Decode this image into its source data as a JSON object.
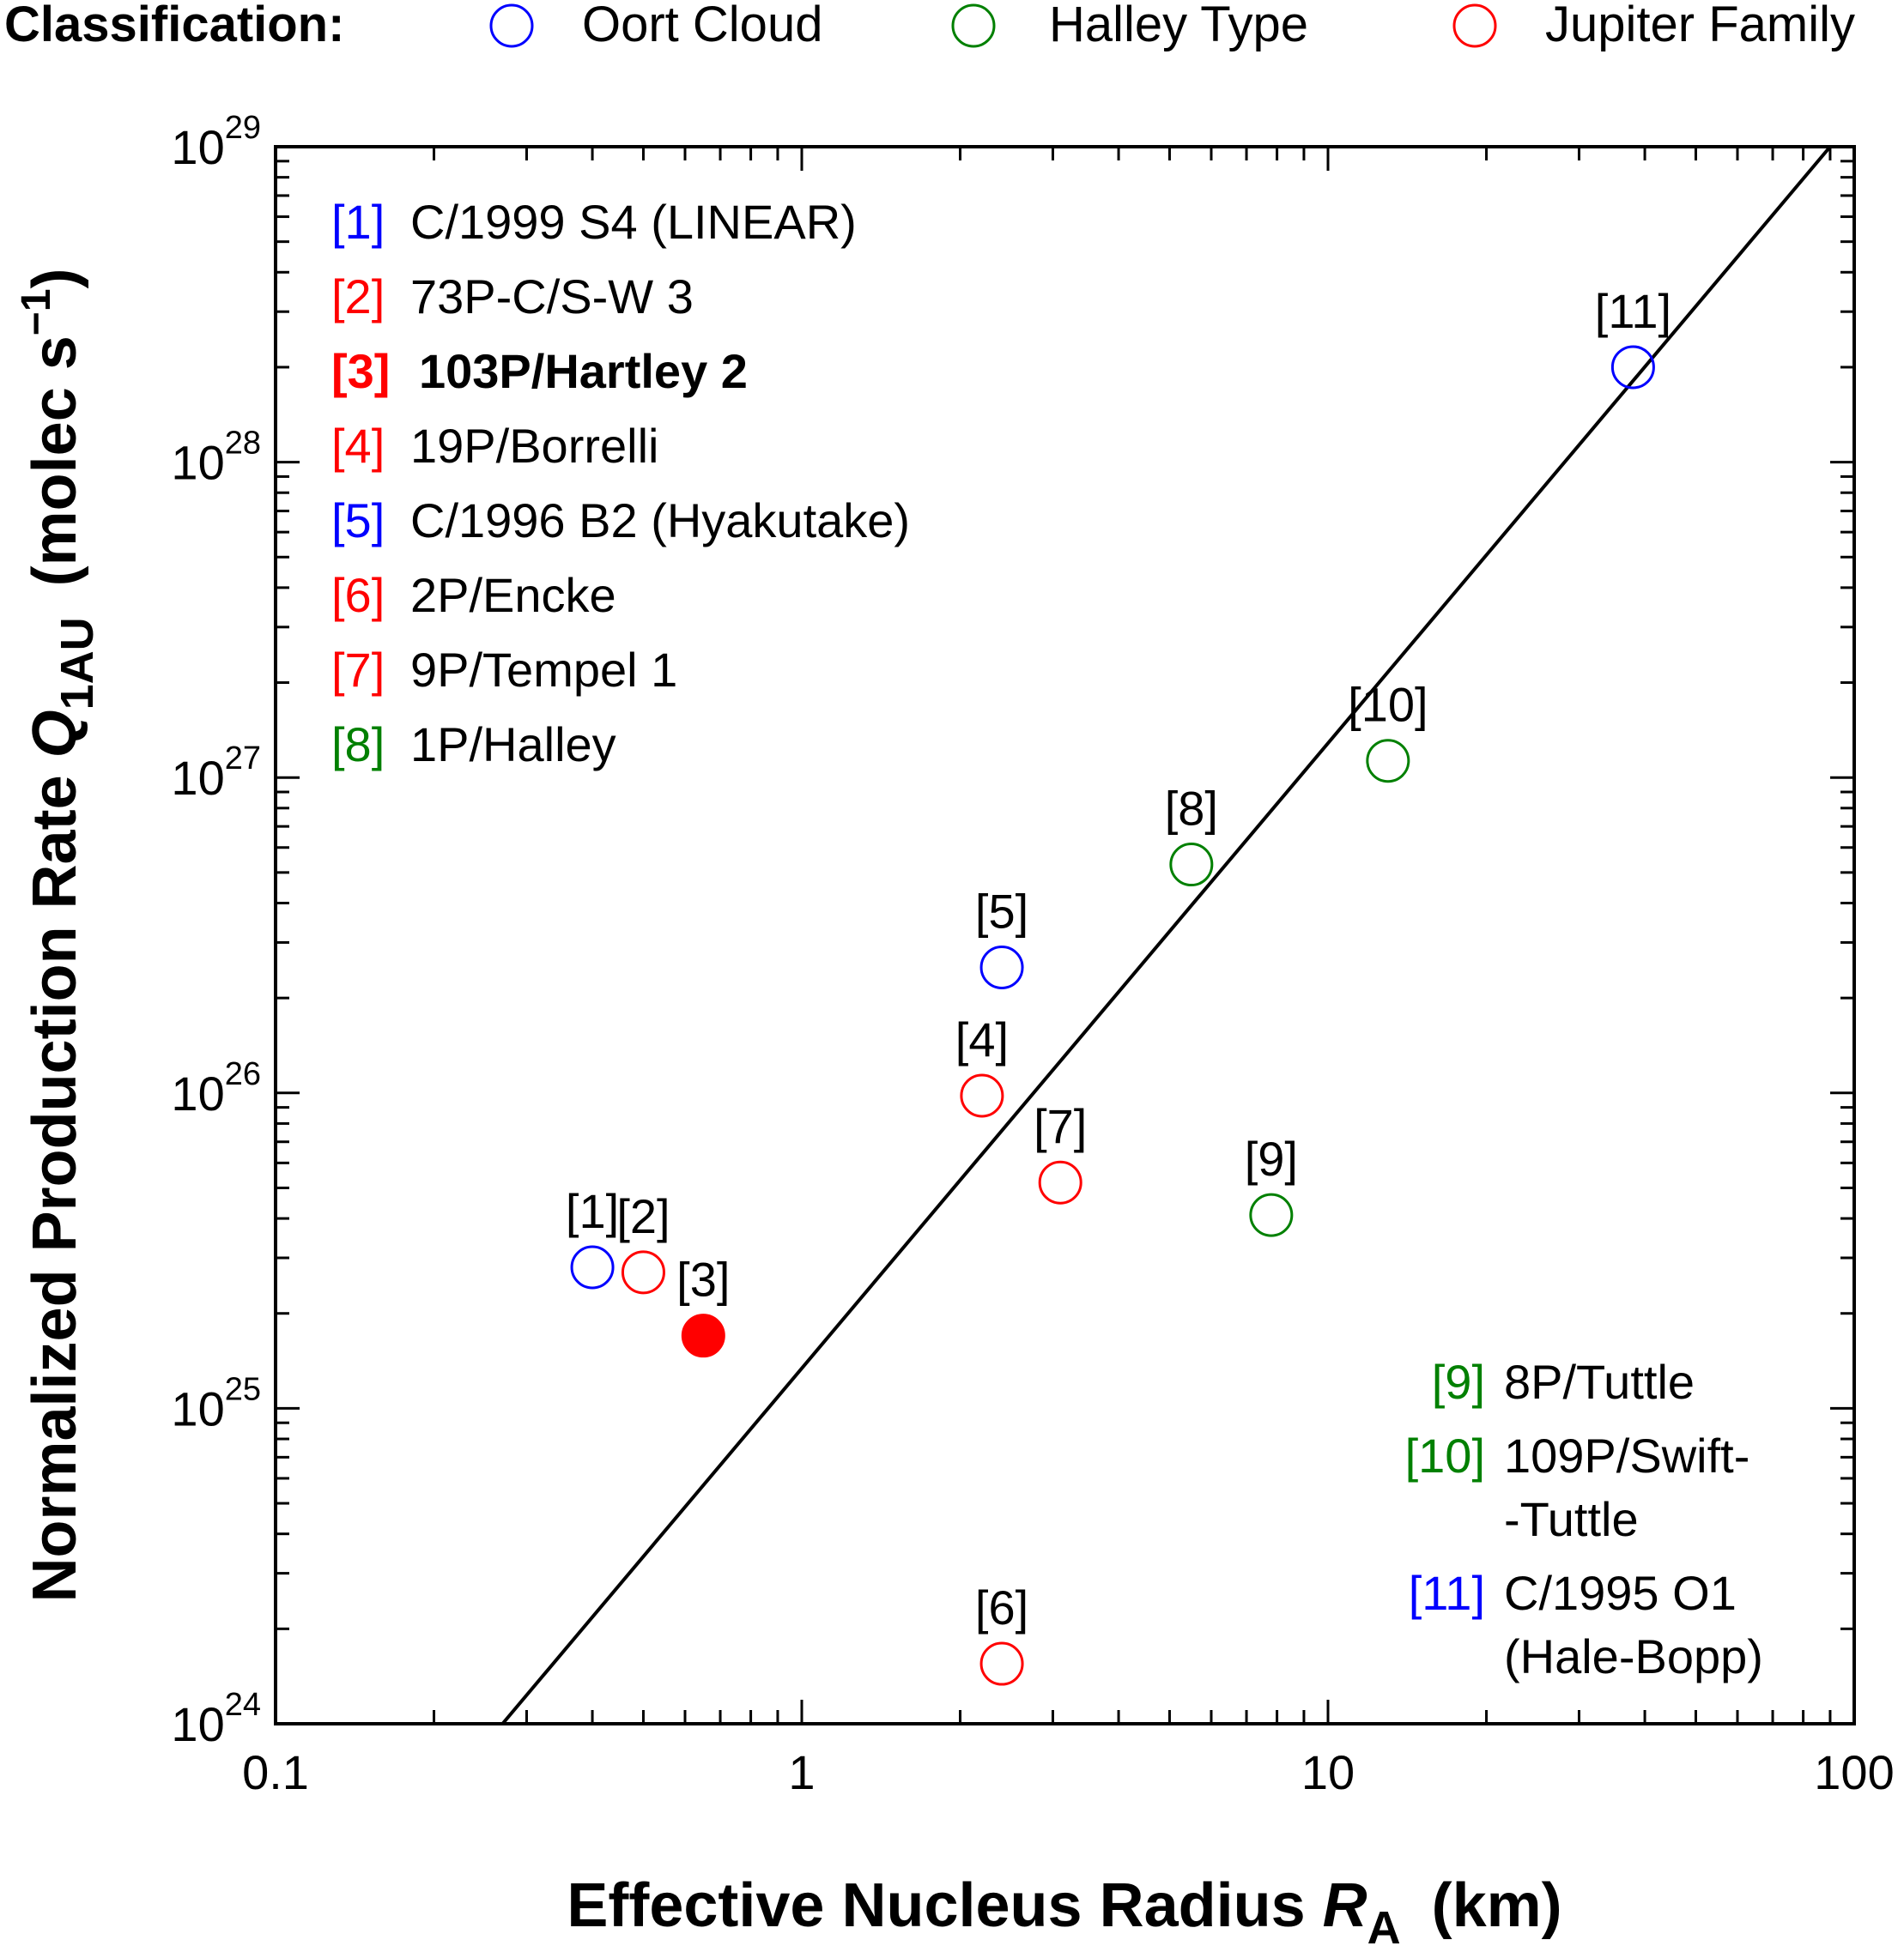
{
  "colors": {
    "oort": "#0000ff",
    "halley": "#008000",
    "jupiter": "#ff0000",
    "axis": "#000000"
  },
  "classification": {
    "label": "Classification:",
    "items": [
      {
        "name": "Oort Cloud",
        "group": "oort"
      },
      {
        "name": "Halley Type",
        "group": "halley"
      },
      {
        "name": "Jupiter Family",
        "group": "jupiter"
      }
    ]
  },
  "chart_data": {
    "type": "scatter",
    "x_scale": "log",
    "y_scale": "log",
    "xlim": [
      0.1,
      100
    ],
    "ylim": [
      1e+24,
      1e+29
    ],
    "x_ticks": [
      {
        "value": 0.1,
        "label": "0.1"
      },
      {
        "value": 1,
        "label": "1"
      },
      {
        "value": 10,
        "label": "10"
      },
      {
        "value": 100,
        "label": "100"
      }
    ],
    "y_ticks": [
      {
        "value": 1e+24,
        "base": "10",
        "exp": "24"
      },
      {
        "value": 1e+25,
        "base": "10",
        "exp": "25"
      },
      {
        "value": 1e+26,
        "base": "10",
        "exp": "26"
      },
      {
        "value": 1e+27,
        "base": "10",
        "exp": "27"
      },
      {
        "value": 1e+28,
        "base": "10",
        "exp": "28"
      },
      {
        "value": 1e+29,
        "base": "10",
        "exp": "29"
      }
    ],
    "xlabel": {
      "main": "Effective Nucleus Radius ",
      "var": "R",
      "sub": "A",
      "unit": "(km)"
    },
    "ylabel": {
      "main": "Normalized Production Rate ",
      "var": "Q",
      "sub": "1AU",
      "unit": "(molec s",
      "sup": "−1",
      "close": ")"
    },
    "fit_line": {
      "x": [
        0.27,
        90
      ],
      "y": [
        1e+24,
        1e+29
      ]
    },
    "points": [
      {
        "id": "1",
        "label": "[1]",
        "name": "C/1999 S4 (LINEAR)",
        "group": "oort",
        "x": 0.4,
        "y": 2.8e+25,
        "filled": false
      },
      {
        "id": "2",
        "label": "[2]",
        "name": "73P-C/S-W 3",
        "group": "jupiter",
        "x": 0.5,
        "y": 2.7e+25,
        "filled": false
      },
      {
        "id": "3",
        "label": "[3]",
        "name": "103P/Hartley 2",
        "group": "jupiter",
        "x": 0.65,
        "y": 1.7e+25,
        "filled": true
      },
      {
        "id": "4",
        "label": "[4]",
        "name": "19P/Borrelli",
        "group": "jupiter",
        "x": 2.2,
        "y": 9.8e+25,
        "filled": false
      },
      {
        "id": "5",
        "label": "[5]",
        "name": "C/1996 B2 (Hyakutake)",
        "group": "oort",
        "x": 2.4,
        "y": 2.5e+26,
        "filled": false
      },
      {
        "id": "6",
        "label": "[6]",
        "name": "2P/Encke",
        "group": "jupiter",
        "x": 2.4,
        "y": 1.55e+24,
        "filled": false
      },
      {
        "id": "7",
        "label": "[7]",
        "name": "9P/Tempel 1",
        "group": "jupiter",
        "x": 3.1,
        "y": 5.2e+25,
        "filled": false
      },
      {
        "id": "8",
        "label": "[8]",
        "name": "1P/Halley",
        "group": "halley",
        "x": 5.5,
        "y": 5.3e+26,
        "filled": false
      },
      {
        "id": "9",
        "label": "[9]",
        "name": "8P/Tuttle",
        "group": "halley",
        "x": 7.8,
        "y": 4.1e+25,
        "filled": false
      },
      {
        "id": "10",
        "label": "[10]",
        "name": "109P/Swift-Tuttle",
        "group": "halley",
        "x": 13,
        "y": 1.13e+27,
        "filled": false
      },
      {
        "id": "11",
        "label": "[11]",
        "name": "C/1995 O1 (Hale-Bopp)",
        "group": "oort",
        "x": 38,
        "y": 2e+28,
        "filled": false
      }
    ],
    "legend_top_left": [
      {
        "tag": "[1]",
        "name": "C/1999 S4 (LINEAR)",
        "group": "oort",
        "bold": false
      },
      {
        "tag": "[2]",
        "name": "73P-C/S-W 3",
        "group": "jupiter",
        "bold": false
      },
      {
        "tag": "[3]",
        "name": "103P/Hartley 2",
        "group": "jupiter",
        "bold": true
      },
      {
        "tag": "[4]",
        "name": "19P/Borrelli",
        "group": "jupiter",
        "bold": false
      },
      {
        "tag": "[5]",
        "name": "C/1996 B2 (Hyakutake)",
        "group": "oort",
        "bold": false
      },
      {
        "tag": "[6]",
        "name": "2P/Encke",
        "group": "jupiter",
        "bold": false
      },
      {
        "tag": "[7]",
        "name": "9P/Tempel 1",
        "group": "jupiter",
        "bold": false
      },
      {
        "tag": "[8]",
        "name": "1P/Halley",
        "group": "halley",
        "bold": false
      }
    ],
    "legend_bottom_right": [
      {
        "tag": "[9]",
        "lines": [
          "8P/Tuttle"
        ],
        "group": "halley"
      },
      {
        "tag": "[10]",
        "lines": [
          "109P/Swift-",
          "-Tuttle"
        ],
        "group": "halley"
      },
      {
        "tag": "[11]",
        "lines": [
          "C/1995 O1",
          "(Hale-Bopp)"
        ],
        "group": "oort"
      }
    ]
  }
}
